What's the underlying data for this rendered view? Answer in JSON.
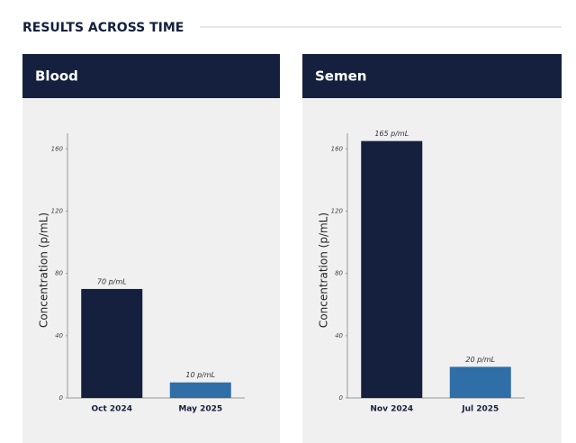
{
  "header": {
    "title": "RESULTS ACROSS TIME"
  },
  "chart_data": [
    {
      "type": "bar",
      "title": "Blood",
      "y_label": "Concentration (p/mL)",
      "categories": [
        "Oct 2024",
        "May 2025"
      ],
      "values": [
        70,
        10
      ],
      "value_labels": [
        "70 p/mL",
        "10 p/mL"
      ],
      "colors": [
        "#14203d",
        "#2f6ea6"
      ],
      "ylim": [
        0,
        170
      ],
      "yticks": [
        0,
        40,
        80,
        120,
        160
      ],
      "grid": false
    },
    {
      "type": "bar",
      "title": "Semen",
      "y_label": "Concentration (p/mL)",
      "categories": [
        "Nov 2024",
        "Jul 2025"
      ],
      "values": [
        165,
        20
      ],
      "value_labels": [
        "165 p/mL",
        "20 p/mL"
      ],
      "colors": [
        "#14203d",
        "#2f6ea6"
      ],
      "ylim": [
        0,
        170
      ],
      "yticks": [
        0,
        40,
        80,
        120,
        160
      ],
      "grid": false
    }
  ]
}
